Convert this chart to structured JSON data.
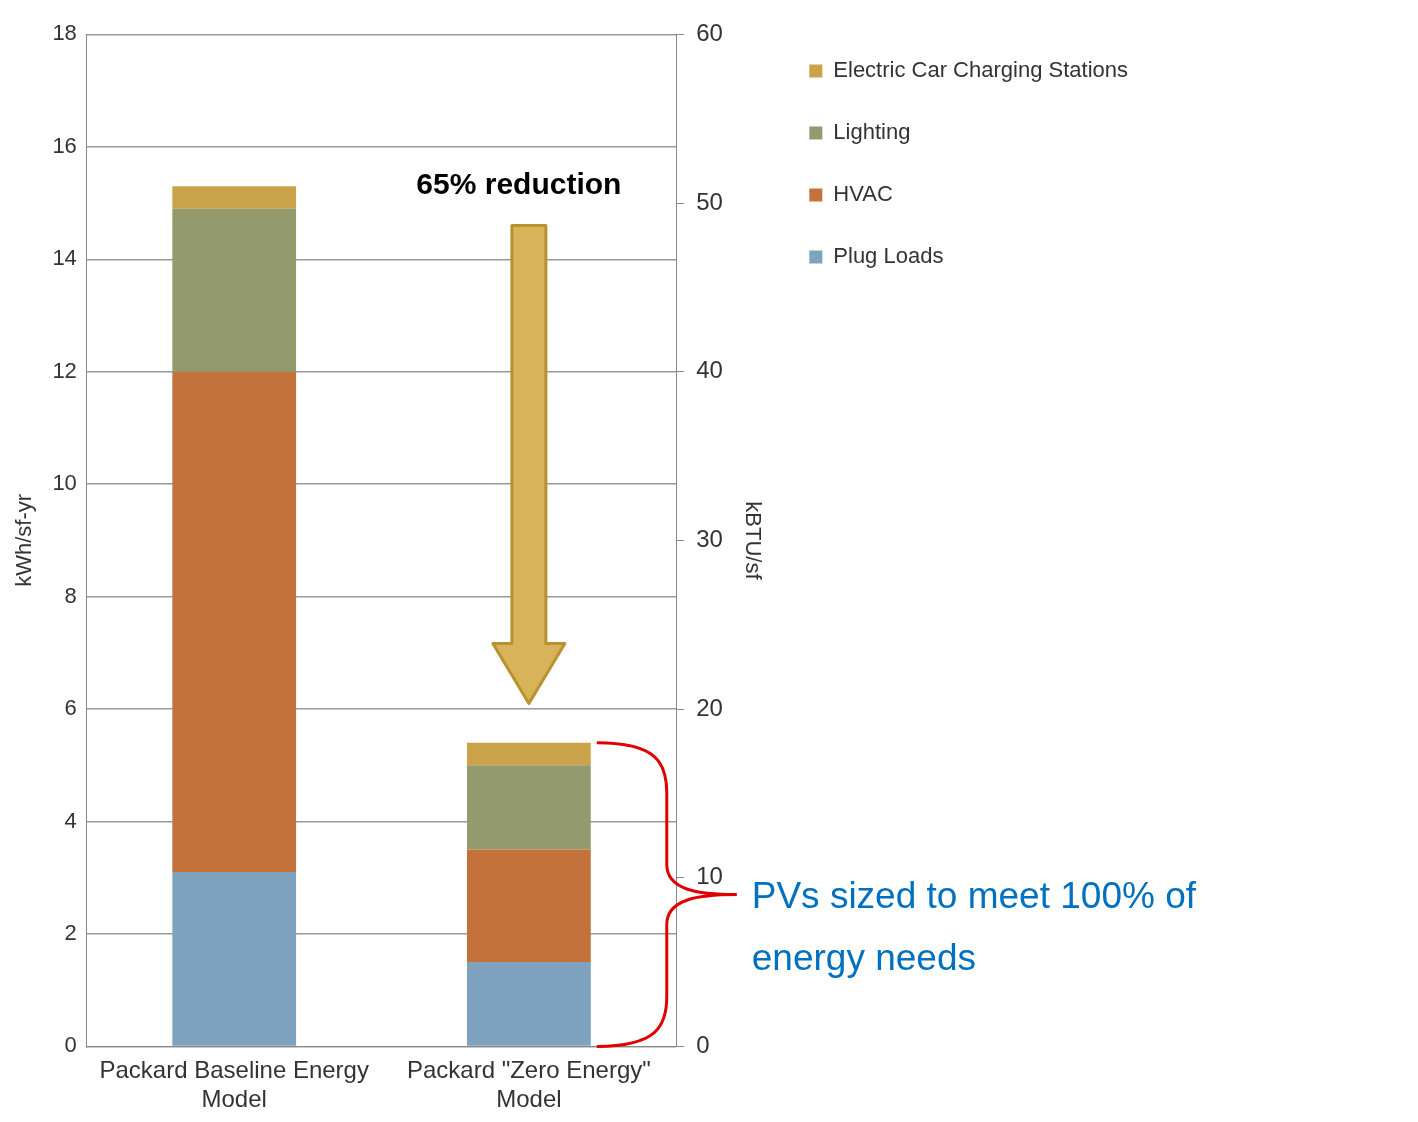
{
  "chart_data": {
    "type": "bar",
    "stacked": true,
    "categories": [
      "Packard Baseline Energy Model",
      "Packard \"Zero Energy\" Model"
    ],
    "series": [
      {
        "name": "Plug Loads",
        "color": "#7fa3bf",
        "values": [
          3.1,
          1.5
        ]
      },
      {
        "name": "HVAC",
        "color": "#c4723c",
        "values": [
          8.9,
          2.0
        ]
      },
      {
        "name": "Lighting",
        "color": "#939a6d",
        "values": [
          2.9,
          1.5
        ]
      },
      {
        "name": "Electric Car Charging Stations",
        "color": "#c9a24a",
        "values": [
          0.4,
          0.4
        ]
      }
    ],
    "ylabel": "kWh/sf-yr",
    "y2label": "kBTU/sf",
    "ylim": [
      0,
      18
    ],
    "yticks": [
      0,
      2,
      4,
      6,
      8,
      10,
      12,
      14,
      16,
      18
    ],
    "y2lim": [
      0,
      60
    ],
    "y2ticks": [
      0,
      10,
      20,
      30,
      40,
      50,
      60
    ],
    "grid": "y",
    "legend": "top right",
    "annotations": [
      "65% reduction",
      "PVs sized to meet 100% of energy needs"
    ]
  }
}
